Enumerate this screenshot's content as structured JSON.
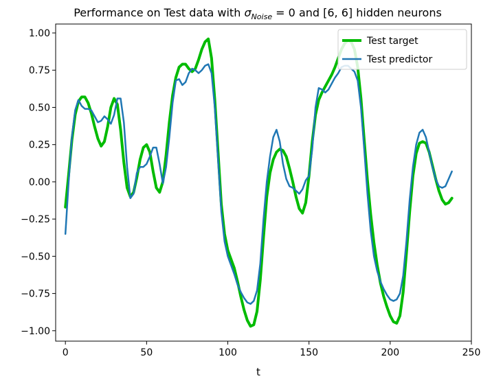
{
  "chart_data": {
    "type": "line",
    "title": {
      "prefix": "Performance on Test data with ",
      "sigma": "σ",
      "subscript": "Noise",
      "suffix": " = 0 and [6, 6] hidden neurons"
    },
    "xlabel": "t",
    "ylabel": "",
    "xlim": [
      -6,
      250
    ],
    "ylim": [
      -1.07,
      1.06
    ],
    "x_ticks": [
      0,
      50,
      100,
      150,
      200,
      250
    ],
    "y_ticks": [
      -1.0,
      -0.75,
      -0.5,
      -0.25,
      0.0,
      0.25,
      0.5,
      0.75,
      1.0
    ],
    "x_tick_labels": [
      "0",
      "50",
      "100",
      "150",
      "200",
      "250"
    ],
    "y_tick_labels": [
      "−1.00",
      "−0.75",
      "−0.50",
      "−0.25",
      "0.00",
      "0.25",
      "0.50",
      "0.75",
      "1.00"
    ],
    "legend_position": "top-right",
    "grid": false,
    "series": [
      {
        "name": "Test target",
        "color": "#00bb00",
        "points": [
          [
            0,
            -0.17
          ],
          [
            2,
            0.05
          ],
          [
            4,
            0.28
          ],
          [
            6,
            0.45
          ],
          [
            8,
            0.54
          ],
          [
            10,
            0.57
          ],
          [
            12,
            0.57
          ],
          [
            14,
            0.53
          ],
          [
            16,
            0.46
          ],
          [
            18,
            0.37
          ],
          [
            20,
            0.29
          ],
          [
            22,
            0.24
          ],
          [
            24,
            0.27
          ],
          [
            26,
            0.37
          ],
          [
            28,
            0.5
          ],
          [
            30,
            0.56
          ],
          [
            32,
            0.52
          ],
          [
            34,
            0.35
          ],
          [
            36,
            0.13
          ],
          [
            38,
            -0.04
          ],
          [
            40,
            -0.1
          ],
          [
            42,
            -0.07
          ],
          [
            44,
            0.03
          ],
          [
            46,
            0.15
          ],
          [
            48,
            0.23
          ],
          [
            50,
            0.25
          ],
          [
            52,
            0.2
          ],
          [
            54,
            0.07
          ],
          [
            56,
            -0.04
          ],
          [
            58,
            -0.07
          ],
          [
            60,
            0.0
          ],
          [
            62,
            0.18
          ],
          [
            64,
            0.4
          ],
          [
            66,
            0.58
          ],
          [
            68,
            0.7
          ],
          [
            70,
            0.77
          ],
          [
            72,
            0.79
          ],
          [
            74,
            0.79
          ],
          [
            76,
            0.76
          ],
          [
            78,
            0.74
          ],
          [
            80,
            0.76
          ],
          [
            82,
            0.82
          ],
          [
            84,
            0.89
          ],
          [
            86,
            0.94
          ],
          [
            88,
            0.96
          ],
          [
            90,
            0.83
          ],
          [
            92,
            0.55
          ],
          [
            94,
            0.2
          ],
          [
            96,
            -0.15
          ],
          [
            98,
            -0.35
          ],
          [
            100,
            -0.46
          ],
          [
            102,
            -0.52
          ],
          [
            104,
            -0.58
          ],
          [
            106,
            -0.67
          ],
          [
            108,
            -0.77
          ],
          [
            110,
            -0.86
          ],
          [
            112,
            -0.93
          ],
          [
            114,
            -0.97
          ],
          [
            116,
            -0.96
          ],
          [
            118,
            -0.87
          ],
          [
            120,
            -0.66
          ],
          [
            122,
            -0.37
          ],
          [
            124,
            -0.1
          ],
          [
            126,
            0.06
          ],
          [
            128,
            0.15
          ],
          [
            130,
            0.2
          ],
          [
            132,
            0.22
          ],
          [
            134,
            0.21
          ],
          [
            136,
            0.17
          ],
          [
            138,
            0.09
          ],
          [
            140,
            0.0
          ],
          [
            142,
            -0.1
          ],
          [
            144,
            -0.18
          ],
          [
            146,
            -0.21
          ],
          [
            148,
            -0.14
          ],
          [
            150,
            0.04
          ],
          [
            152,
            0.27
          ],
          [
            154,
            0.45
          ],
          [
            156,
            0.55
          ],
          [
            158,
            0.6
          ],
          [
            160,
            0.64
          ],
          [
            162,
            0.68
          ],
          [
            164,
            0.72
          ],
          [
            166,
            0.77
          ],
          [
            168,
            0.83
          ],
          [
            170,
            0.89
          ],
          [
            172,
            0.93
          ],
          [
            174,
            0.95
          ],
          [
            176,
            0.94
          ],
          [
            178,
            0.89
          ],
          [
            180,
            0.77
          ],
          [
            182,
            0.56
          ],
          [
            184,
            0.28
          ],
          [
            186,
            0.01
          ],
          [
            188,
            -0.22
          ],
          [
            190,
            -0.41
          ],
          [
            192,
            -0.56
          ],
          [
            194,
            -0.68
          ],
          [
            196,
            -0.77
          ],
          [
            198,
            -0.84
          ],
          [
            200,
            -0.9
          ],
          [
            202,
            -0.94
          ],
          [
            204,
            -0.95
          ],
          [
            206,
            -0.9
          ],
          [
            208,
            -0.74
          ],
          [
            210,
            -0.48
          ],
          [
            212,
            -0.2
          ],
          [
            214,
            0.04
          ],
          [
            216,
            0.19
          ],
          [
            218,
            0.26
          ],
          [
            220,
            0.27
          ],
          [
            222,
            0.26
          ],
          [
            224,
            0.2
          ],
          [
            226,
            0.11
          ],
          [
            228,
            0.02
          ],
          [
            230,
            -0.06
          ],
          [
            232,
            -0.12
          ],
          [
            234,
            -0.15
          ],
          [
            236,
            -0.14
          ],
          [
            238,
            -0.11
          ]
        ]
      },
      {
        "name": "Test predictor",
        "color": "#1f77b4",
        "points": [
          [
            0,
            -0.35
          ],
          [
            2,
            0.0
          ],
          [
            4,
            0.3
          ],
          [
            6,
            0.48
          ],
          [
            8,
            0.55
          ],
          [
            10,
            0.51
          ],
          [
            12,
            0.49
          ],
          [
            14,
            0.49
          ],
          [
            16,
            0.48
          ],
          [
            18,
            0.44
          ],
          [
            20,
            0.4
          ],
          [
            22,
            0.41
          ],
          [
            24,
            0.44
          ],
          [
            26,
            0.42
          ],
          [
            28,
            0.39
          ],
          [
            30,
            0.45
          ],
          [
            32,
            0.56
          ],
          [
            34,
            0.56
          ],
          [
            36,
            0.4
          ],
          [
            38,
            0.1
          ],
          [
            40,
            -0.11
          ],
          [
            42,
            -0.08
          ],
          [
            44,
            0.06
          ],
          [
            46,
            0.1
          ],
          [
            48,
            0.1
          ],
          [
            50,
            0.12
          ],
          [
            52,
            0.17
          ],
          [
            54,
            0.23
          ],
          [
            56,
            0.23
          ],
          [
            58,
            0.12
          ],
          [
            60,
            -0.01
          ],
          [
            62,
            0.1
          ],
          [
            64,
            0.3
          ],
          [
            66,
            0.53
          ],
          [
            68,
            0.68
          ],
          [
            70,
            0.69
          ],
          [
            72,
            0.65
          ],
          [
            74,
            0.67
          ],
          [
            76,
            0.73
          ],
          [
            78,
            0.76
          ],
          [
            80,
            0.75
          ],
          [
            82,
            0.73
          ],
          [
            84,
            0.75
          ],
          [
            86,
            0.78
          ],
          [
            88,
            0.79
          ],
          [
            90,
            0.73
          ],
          [
            92,
            0.5
          ],
          [
            94,
            0.15
          ],
          [
            96,
            -0.2
          ],
          [
            98,
            -0.4
          ],
          [
            100,
            -0.5
          ],
          [
            102,
            -0.56
          ],
          [
            104,
            -0.62
          ],
          [
            106,
            -0.69
          ],
          [
            108,
            -0.74
          ],
          [
            110,
            -0.78
          ],
          [
            112,
            -0.81
          ],
          [
            114,
            -0.82
          ],
          [
            116,
            -0.8
          ],
          [
            118,
            -0.73
          ],
          [
            120,
            -0.55
          ],
          [
            122,
            -0.25
          ],
          [
            124,
            0.0
          ],
          [
            126,
            0.17
          ],
          [
            128,
            0.3
          ],
          [
            130,
            0.35
          ],
          [
            132,
            0.27
          ],
          [
            134,
            0.12
          ],
          [
            136,
            0.02
          ],
          [
            138,
            -0.03
          ],
          [
            140,
            -0.04
          ],
          [
            142,
            -0.06
          ],
          [
            144,
            -0.08
          ],
          [
            146,
            -0.05
          ],
          [
            148,
            0.01
          ],
          [
            150,
            0.04
          ],
          [
            152,
            0.22
          ],
          [
            154,
            0.5
          ],
          [
            156,
            0.63
          ],
          [
            158,
            0.62
          ],
          [
            160,
            0.6
          ],
          [
            162,
            0.62
          ],
          [
            164,
            0.66
          ],
          [
            166,
            0.7
          ],
          [
            168,
            0.73
          ],
          [
            170,
            0.77
          ],
          [
            172,
            0.78
          ],
          [
            174,
            0.78
          ],
          [
            176,
            0.76
          ],
          [
            178,
            0.74
          ],
          [
            180,
            0.68
          ],
          [
            182,
            0.5
          ],
          [
            184,
            0.22
          ],
          [
            186,
            -0.08
          ],
          [
            188,
            -0.33
          ],
          [
            190,
            -0.5
          ],
          [
            192,
            -0.6
          ],
          [
            194,
            -0.67
          ],
          [
            196,
            -0.72
          ],
          [
            198,
            -0.76
          ],
          [
            200,
            -0.79
          ],
          [
            202,
            -0.8
          ],
          [
            204,
            -0.79
          ],
          [
            206,
            -0.75
          ],
          [
            208,
            -0.63
          ],
          [
            210,
            -0.4
          ],
          [
            212,
            -0.12
          ],
          [
            214,
            0.1
          ],
          [
            216,
            0.25
          ],
          [
            218,
            0.33
          ],
          [
            220,
            0.35
          ],
          [
            222,
            0.3
          ],
          [
            224,
            0.2
          ],
          [
            226,
            0.1
          ],
          [
            228,
            0.02
          ],
          [
            230,
            -0.03
          ],
          [
            232,
            -0.04
          ],
          [
            234,
            -0.03
          ],
          [
            236,
            0.02
          ],
          [
            238,
            0.07
          ]
        ]
      }
    ]
  }
}
